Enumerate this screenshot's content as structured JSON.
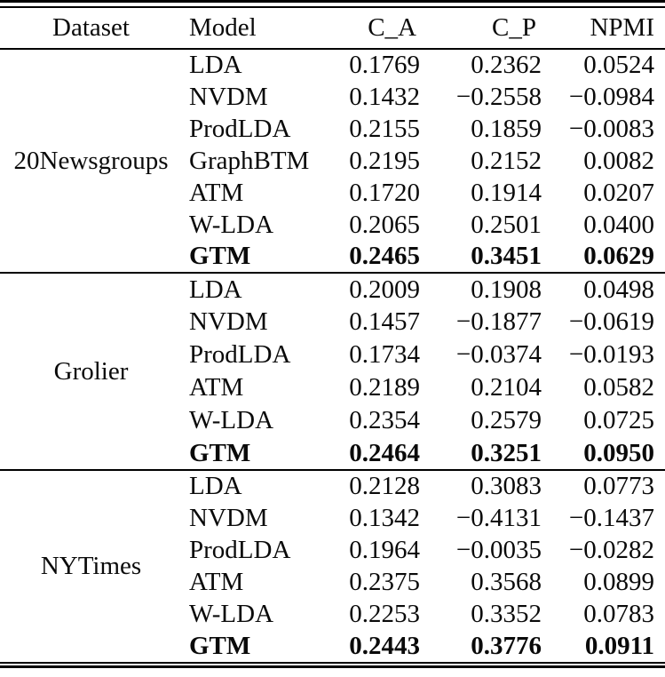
{
  "table": {
    "headers": {
      "dataset": "Dataset",
      "model": "Model",
      "c_a": "C_A",
      "c_p": "C_P",
      "npmi": "NPMI"
    },
    "groups": [
      {
        "dataset": "20Newsgroups",
        "rows": [
          {
            "model": "LDA",
            "c_a": "0.1769",
            "c_p": "0.2362",
            "npmi": "0.0524",
            "bold": false
          },
          {
            "model": "NVDM",
            "c_a": "0.1432",
            "c_p": "−0.2558",
            "npmi": "−0.0984",
            "bold": false
          },
          {
            "model": "ProdLDA",
            "c_a": "0.2155",
            "c_p": "0.1859",
            "npmi": "−0.0083",
            "bold": false
          },
          {
            "model": "GraphBTM",
            "c_a": "0.2195",
            "c_p": "0.2152",
            "npmi": "0.0082",
            "bold": false
          },
          {
            "model": "ATM",
            "c_a": "0.1720",
            "c_p": "0.1914",
            "npmi": "0.0207",
            "bold": false
          },
          {
            "model": "W-LDA",
            "c_a": "0.2065",
            "c_p": "0.2501",
            "npmi": "0.0400",
            "bold": false
          },
          {
            "model": "GTM",
            "c_a": "0.2465",
            "c_p": "0.3451",
            "npmi": "0.0629",
            "bold": true
          }
        ]
      },
      {
        "dataset": "Grolier",
        "rows": [
          {
            "model": "LDA",
            "c_a": "0.2009",
            "c_p": "0.1908",
            "npmi": "0.0498",
            "bold": false
          },
          {
            "model": "NVDM",
            "c_a": "0.1457",
            "c_p": "−0.1877",
            "npmi": "−0.0619",
            "bold": false
          },
          {
            "model": "ProdLDA",
            "c_a": "0.1734",
            "c_p": "−0.0374",
            "npmi": "−0.0193",
            "bold": false
          },
          {
            "model": "ATM",
            "c_a": "0.2189",
            "c_p": "0.2104",
            "npmi": "0.0582",
            "bold": false
          },
          {
            "model": "W-LDA",
            "c_a": "0.2354",
            "c_p": "0.2579",
            "npmi": "0.0725",
            "bold": false
          },
          {
            "model": "GTM",
            "c_a": "0.2464",
            "c_p": "0.3251",
            "npmi": "0.0950",
            "bold": true
          }
        ]
      },
      {
        "dataset": "NYTimes",
        "rows": [
          {
            "model": "LDA",
            "c_a": "0.2128",
            "c_p": "0.3083",
            "npmi": "0.0773",
            "bold": false
          },
          {
            "model": "NVDM",
            "c_a": "0.1342",
            "c_p": "−0.4131",
            "npmi": "−0.1437",
            "bold": false
          },
          {
            "model": "ProdLDA",
            "c_a": "0.1964",
            "c_p": "−0.0035",
            "npmi": "−0.0282",
            "bold": false
          },
          {
            "model": "ATM",
            "c_a": "0.2375",
            "c_p": "0.3568",
            "npmi": "0.0899",
            "bold": false
          },
          {
            "model": "W-LDA",
            "c_a": "0.2253",
            "c_p": "0.3352",
            "npmi": "0.0783",
            "bold": false
          },
          {
            "model": "GTM",
            "c_a": "0.2443",
            "c_p": "0.3776",
            "npmi": "0.0911",
            "bold": true
          }
        ]
      }
    ]
  }
}
